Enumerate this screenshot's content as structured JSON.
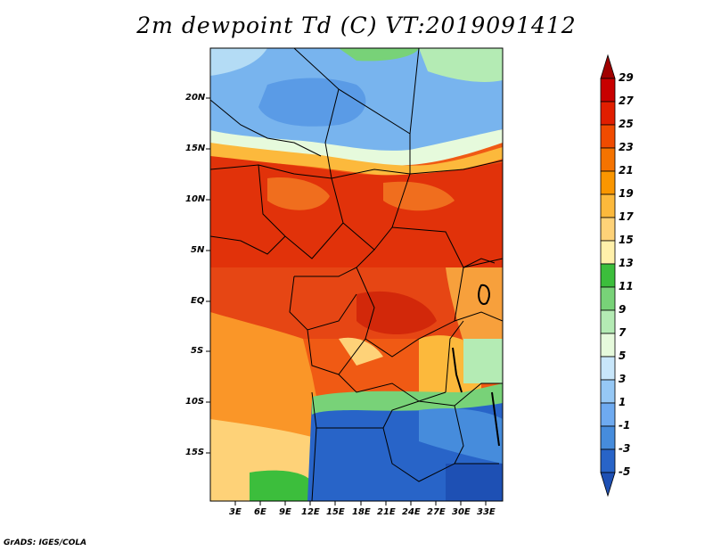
{
  "title": "2m dewpoint Td (C) VT:2019091412",
  "credit": "GrADS: IGES/COLA",
  "map": {
    "lat_labels": [
      "20N",
      "15N",
      "10N",
      "5N",
      "EQ",
      "5S",
      "10S",
      "15S"
    ],
    "lon_labels": [
      "3E",
      "6E",
      "9E",
      "12E",
      "15E",
      "18E",
      "21E",
      "24E",
      "27E",
      "30E",
      "33E"
    ],
    "lon_range_deg": [
      0,
      35
    ],
    "lat_range_deg": [
      -20,
      25
    ]
  },
  "colorbar": {
    "levels": [
      "29",
      "27",
      "25",
      "23",
      "21",
      "19",
      "17",
      "15",
      "13",
      "11",
      "9",
      "7",
      "5",
      "3",
      "1",
      "-1",
      "-3",
      "-5"
    ],
    "colors": [
      "#a00000",
      "#c80000",
      "#e11e00",
      "#f04b00",
      "#f57300",
      "#fa9600",
      "#fcb93c",
      "#fed278",
      "#fff0aa",
      "#3cbe3c",
      "#78d278",
      "#b4ebb4",
      "#e6fadc",
      "#c8e6fa",
      "#96c8f5",
      "#6eaaf0",
      "#468cdc",
      "#2864c8",
      "#1e50b4"
    ]
  }
}
